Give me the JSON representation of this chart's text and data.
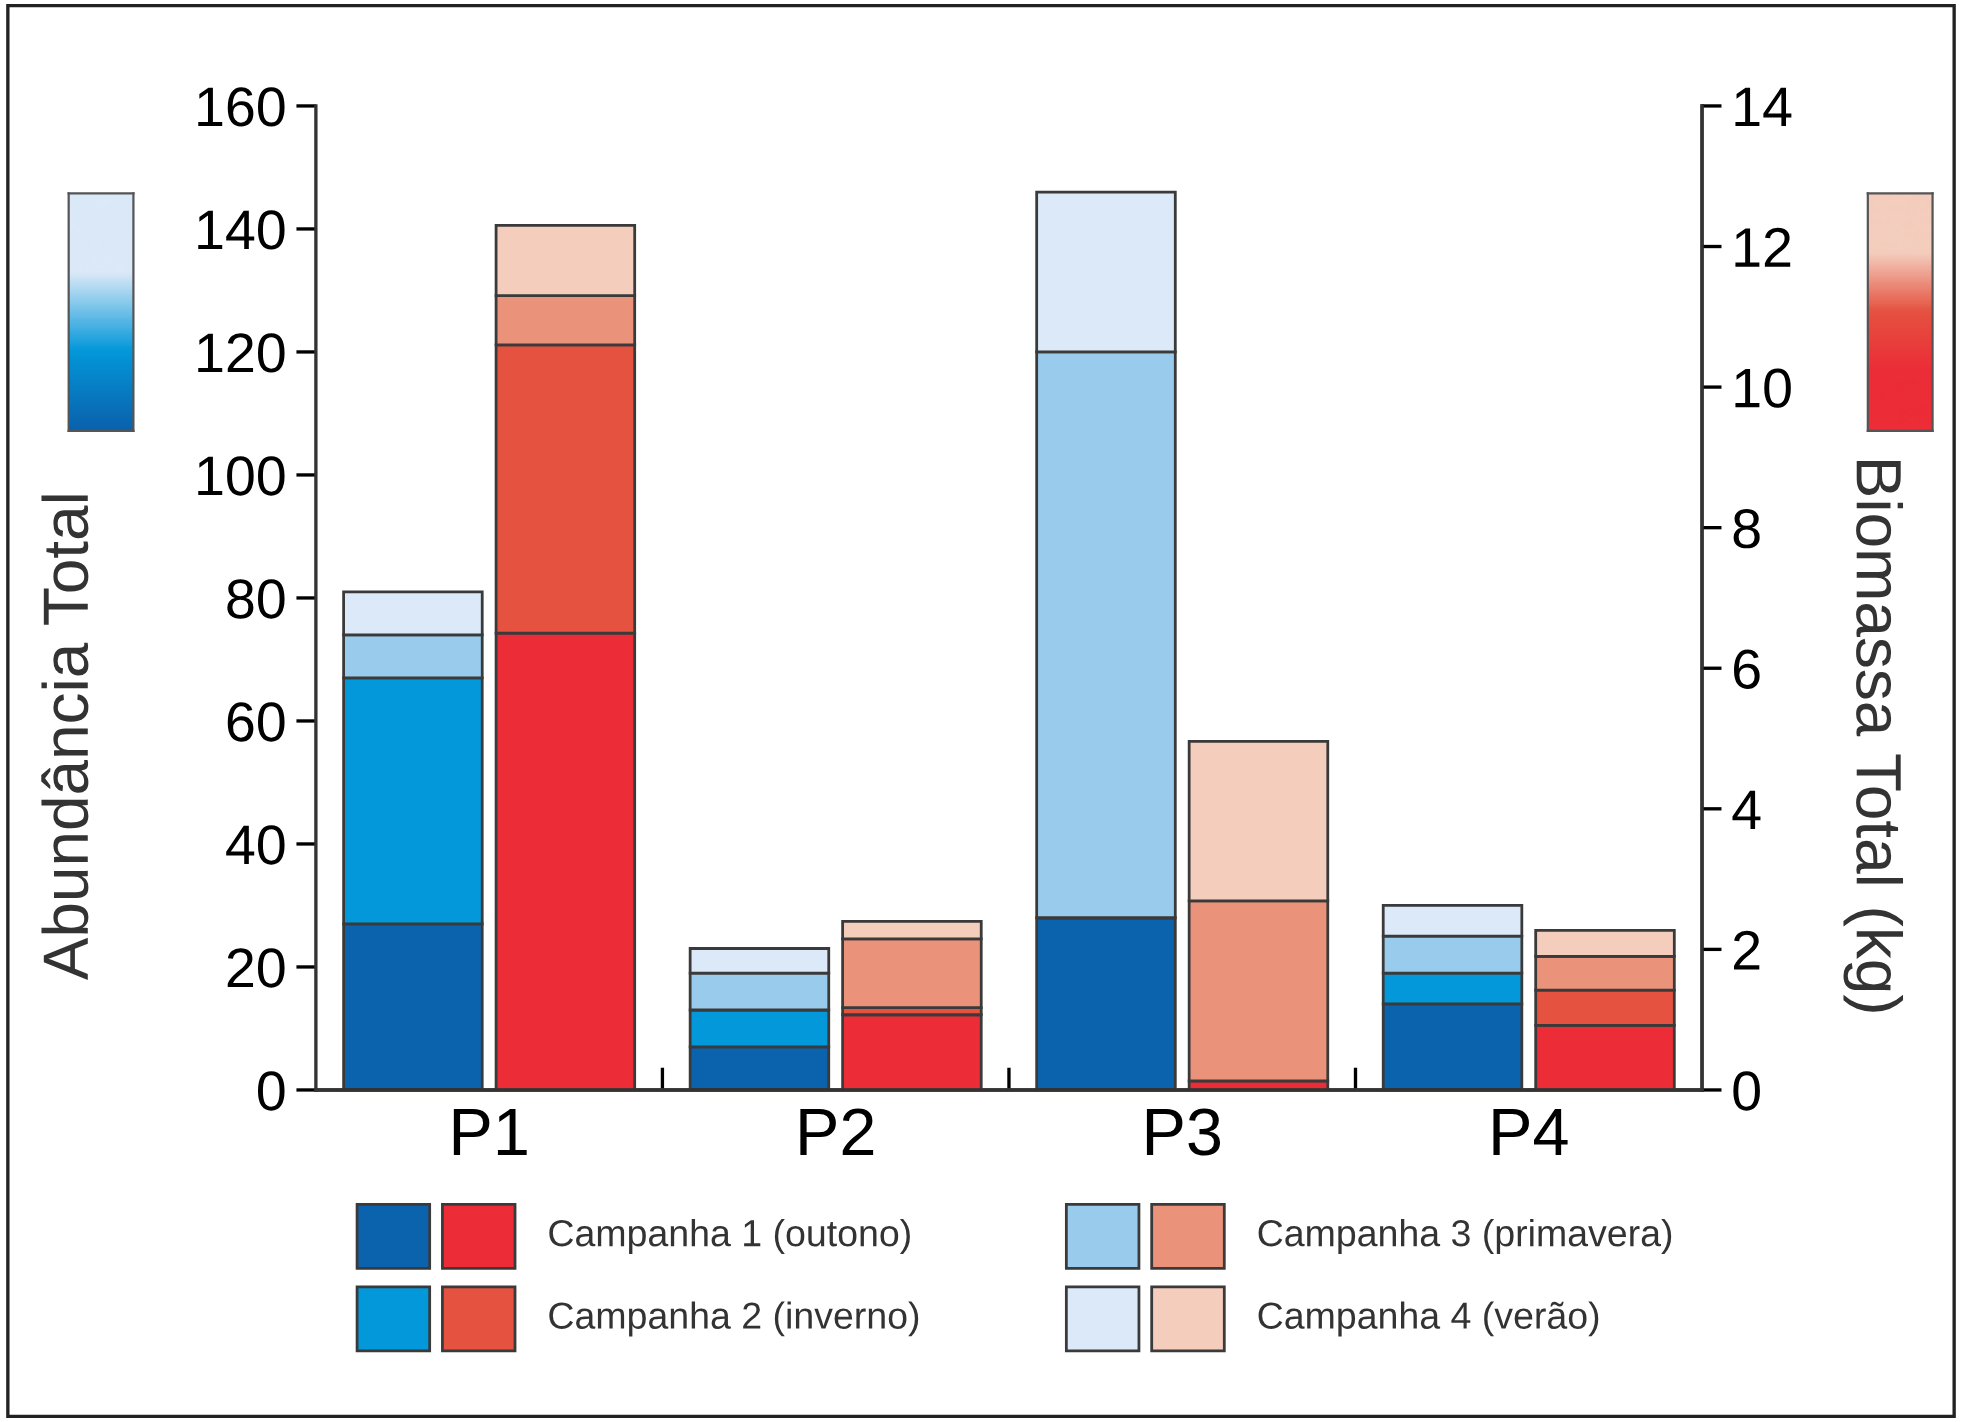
{
  "chart_data": {
    "type": "bar",
    "stacked": true,
    "categories": [
      "P1",
      "P2",
      "P3",
      "P4"
    ],
    "ylabel": "Abundância Total",
    "y2label": "Biomassa Total (kg)",
    "ylim": [
      0,
      160
    ],
    "yticks": [
      0,
      20,
      40,
      60,
      80,
      100,
      120,
      140,
      160
    ],
    "y2lim": [
      0,
      14
    ],
    "y2ticks": [
      0,
      2,
      4,
      6,
      8,
      10,
      12,
      14
    ],
    "legend": "bottom",
    "series": [
      {
        "color": "#0b62ad",
        "values": [
          27,
          7,
          28,
          14
        ]
      },
      {
        "color": "#0398da",
        "values": [
          40,
          6,
          0,
          5
        ]
      },
      {
        "color": "#98cbec",
        "values": [
          7,
          6,
          92,
          6
        ]
      },
      {
        "color": "#dbe9f8",
        "values": [
          7,
          4,
          26,
          5
        ]
      },
      {
        "name": "Campanha 1 (outono)",
        "color": "#ec2d37",
        "axis": "y2",
        "values": [
          6.5,
          1.07,
          0.13,
          0.92
        ]
      },
      {
        "name": "Campanha 2 (inverno)",
        "color": "#e55240",
        "axis": "y2",
        "values": [
          4.1,
          0.1,
          0,
          0.5
        ]
      },
      {
        "name": "Campanha 3 (primavera)",
        "color": "#eb937a",
        "axis": "y2",
        "values": [
          0.7,
          0.98,
          2.56,
          0.48
        ]
      },
      {
        "name": "Campanha 4 (verão)",
        "color": "#f4cdbd",
        "axis": "y2",
        "values": [
          1.0,
          0.25,
          2.27,
          0.37
        ]
      }
    ]
  }
}
